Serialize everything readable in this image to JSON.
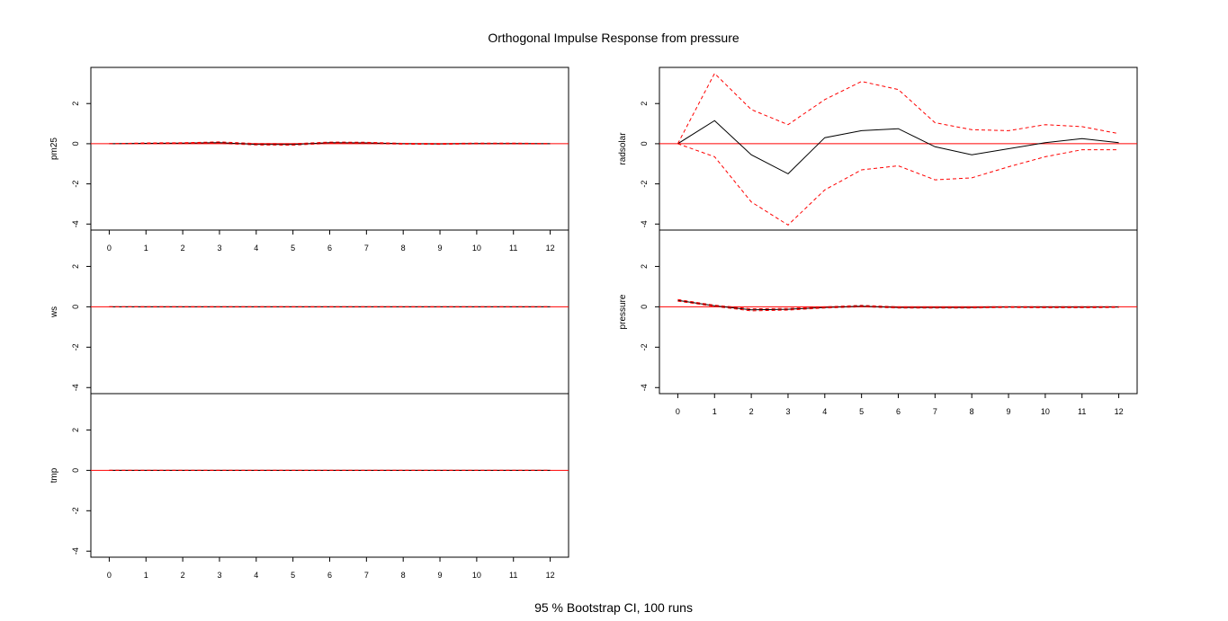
{
  "page": {
    "title": "Orthogonal Impulse Response from pressure",
    "footer": "95 % Bootstrap CI,  100 runs"
  },
  "colors": {
    "response": "#000000",
    "ci": "#ff0000",
    "zero_line": "#ff0000",
    "frame": "#000000",
    "background": "#ffffff"
  },
  "chart_data": [
    {
      "type": "line",
      "panel": "left",
      "ylabel": "pm25",
      "x": [
        0,
        1,
        2,
        3,
        4,
        5,
        6,
        7,
        8,
        9,
        10,
        11,
        12
      ],
      "x_ticks": [
        "0",
        "1",
        "2",
        "3",
        "4",
        "5",
        "6",
        "7",
        "8",
        "9",
        "10",
        "11",
        "12"
      ],
      "ylim": [
        -4.3,
        3.8
      ],
      "y_ticks": [
        "-4",
        "-2",
        "0",
        "2"
      ],
      "series": [
        {
          "role": "response",
          "values": [
            0,
            0.02,
            0.03,
            0.05,
            -0.03,
            -0.04,
            0.05,
            0.04,
            0,
            -0.01,
            0.01,
            0.01,
            0
          ]
        },
        {
          "role": "upper_ci",
          "values": [
            0,
            0.04,
            0.05,
            0.09,
            0.01,
            0,
            0.08,
            0.07,
            0.02,
            0.01,
            0.03,
            0.03,
            0.01
          ]
        },
        {
          "role": "lower_ci",
          "values": [
            0,
            0,
            0.01,
            0.02,
            -0.06,
            -0.07,
            0.02,
            0.01,
            -0.02,
            -0.03,
            -0.01,
            -0.01,
            -0.01
          ]
        }
      ],
      "zero_line": 0
    },
    {
      "type": "line",
      "panel": "left",
      "ylabel": "ws",
      "x": [
        0,
        1,
        2,
        3,
        4,
        5,
        6,
        7,
        8,
        9,
        10,
        11,
        12
      ],
      "ylim": [
        -4.3,
        3.8
      ],
      "y_ticks": [
        "-4",
        "-2",
        "0",
        "2"
      ],
      "series": [
        {
          "role": "response",
          "values": [
            0,
            0,
            0,
            0,
            0,
            0,
            0,
            0,
            0,
            0,
            0,
            0,
            0
          ]
        },
        {
          "role": "upper_ci",
          "values": [
            0,
            0.01,
            0.01,
            0.01,
            0.01,
            0.01,
            0.01,
            0.01,
            0.01,
            0.01,
            0.01,
            0.01,
            0.01
          ]
        },
        {
          "role": "lower_ci",
          "values": [
            0,
            -0.01,
            -0.01,
            -0.01,
            -0.01,
            -0.01,
            -0.01,
            -0.01,
            -0.01,
            -0.01,
            -0.01,
            -0.01,
            -0.01
          ]
        }
      ],
      "zero_line": 0
    },
    {
      "type": "line",
      "panel": "left",
      "ylabel": "tmp",
      "x": [
        0,
        1,
        2,
        3,
        4,
        5,
        6,
        7,
        8,
        9,
        10,
        11,
        12
      ],
      "x_ticks": [
        "0",
        "1",
        "2",
        "3",
        "4",
        "5",
        "6",
        "7",
        "8",
        "9",
        "10",
        "11",
        "12"
      ],
      "ylim": [
        -4.3,
        3.8
      ],
      "y_ticks": [
        "-4",
        "-2",
        "0",
        "2"
      ],
      "series": [
        {
          "role": "response",
          "values": [
            0,
            0,
            0,
            0,
            0,
            0,
            0,
            0,
            0,
            0,
            0,
            0,
            0
          ]
        },
        {
          "role": "upper_ci",
          "values": [
            0,
            0,
            0,
            0,
            0,
            0,
            0,
            0,
            0,
            0,
            0,
            0,
            0
          ]
        },
        {
          "role": "lower_ci",
          "values": [
            0,
            0,
            0,
            0,
            0,
            0,
            0,
            0,
            0,
            0,
            0,
            0,
            0
          ]
        }
      ],
      "zero_line": 0
    },
    {
      "type": "line",
      "panel": "right",
      "ylabel": "radsolar",
      "x": [
        0,
        1,
        2,
        3,
        4,
        5,
        6,
        7,
        8,
        9,
        10,
        11,
        12
      ],
      "ylim": [
        -4.3,
        3.8
      ],
      "y_ticks": [
        "-4",
        "-2",
        "0",
        "2"
      ],
      "series": [
        {
          "role": "response",
          "values": [
            0,
            1.15,
            -0.55,
            -1.5,
            0.3,
            0.65,
            0.75,
            -0.15,
            -0.55,
            -0.25,
            0.05,
            0.25,
            0.05
          ]
        },
        {
          "role": "upper_ci",
          "values": [
            0,
            3.5,
            1.7,
            0.95,
            2.2,
            3.1,
            2.7,
            1.05,
            0.7,
            0.65,
            0.95,
            0.85,
            0.5
          ]
        },
        {
          "role": "lower_ci",
          "values": [
            0,
            -0.65,
            -2.9,
            -4.05,
            -2.3,
            -1.3,
            -1.1,
            -1.8,
            -1.7,
            -1.15,
            -0.65,
            -0.3,
            -0.3
          ]
        }
      ],
      "zero_line": 0
    },
    {
      "type": "line",
      "panel": "right",
      "ylabel": "pressure",
      "x": [
        0,
        1,
        2,
        3,
        4,
        5,
        6,
        7,
        8,
        9,
        10,
        11,
        12
      ],
      "x_ticks": [
        "0",
        "1",
        "2",
        "3",
        "4",
        "5",
        "6",
        "7",
        "8",
        "9",
        "10",
        "11",
        "12"
      ],
      "ylim": [
        -4.3,
        3.8
      ],
      "y_ticks": [
        "-4",
        "-2",
        "0",
        "2"
      ],
      "series": [
        {
          "role": "response",
          "values": [
            0.32,
            0.05,
            -0.15,
            -0.12,
            -0.03,
            0.03,
            -0.03,
            -0.03,
            -0.03,
            -0.01,
            -0.02,
            -0.02,
            -0.01
          ]
        },
        {
          "role": "upper_ci",
          "values": [
            0.36,
            0.08,
            -0.1,
            -0.08,
            0,
            0.07,
            0,
            0,
            0,
            0.01,
            0.01,
            0.01,
            0.01
          ]
        },
        {
          "role": "lower_ci",
          "values": [
            0.28,
            0.02,
            -0.2,
            -0.16,
            -0.06,
            0,
            -0.06,
            -0.06,
            -0.06,
            -0.03,
            -0.05,
            -0.05,
            -0.03
          ]
        }
      ],
      "zero_line": 0
    }
  ]
}
